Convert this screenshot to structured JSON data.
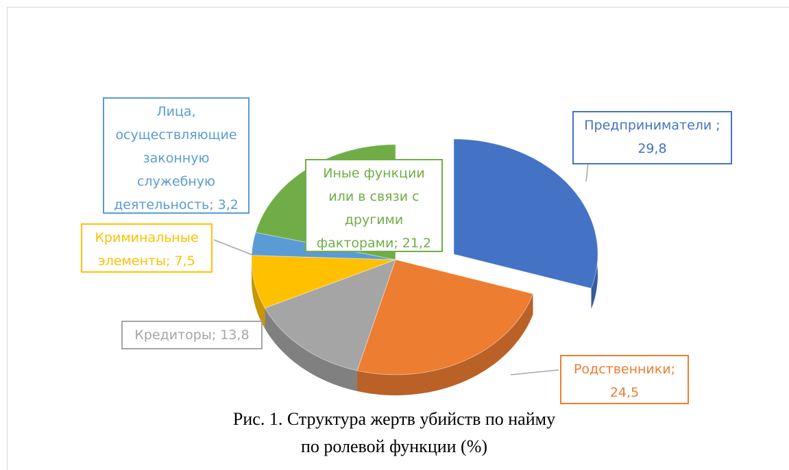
{
  "chart_data": {
    "type": "pie",
    "title": "Рис. 1. Структура жертв убийств по найму по ролевой функции (%)",
    "values": [
      29.8,
      24.5,
      13.8,
      7.5,
      3.2,
      21.2
    ],
    "value_labels": [
      "Предприниматели ; 29,8",
      "Родственники; 24,5",
      "Кредиторы; 13,8",
      "Криминальные элементы; 7,5",
      "Лица, осуществляющие законную служебную деятельность; 3,2",
      "Иные функции или в связи с другими факторами; 21,2"
    ],
    "colors": [
      "#4472c4",
      "#ed7d31",
      "#a5a5a5",
      "#ffc000",
      "#5b9bd5",
      "#70ad47"
    ]
  }
}
